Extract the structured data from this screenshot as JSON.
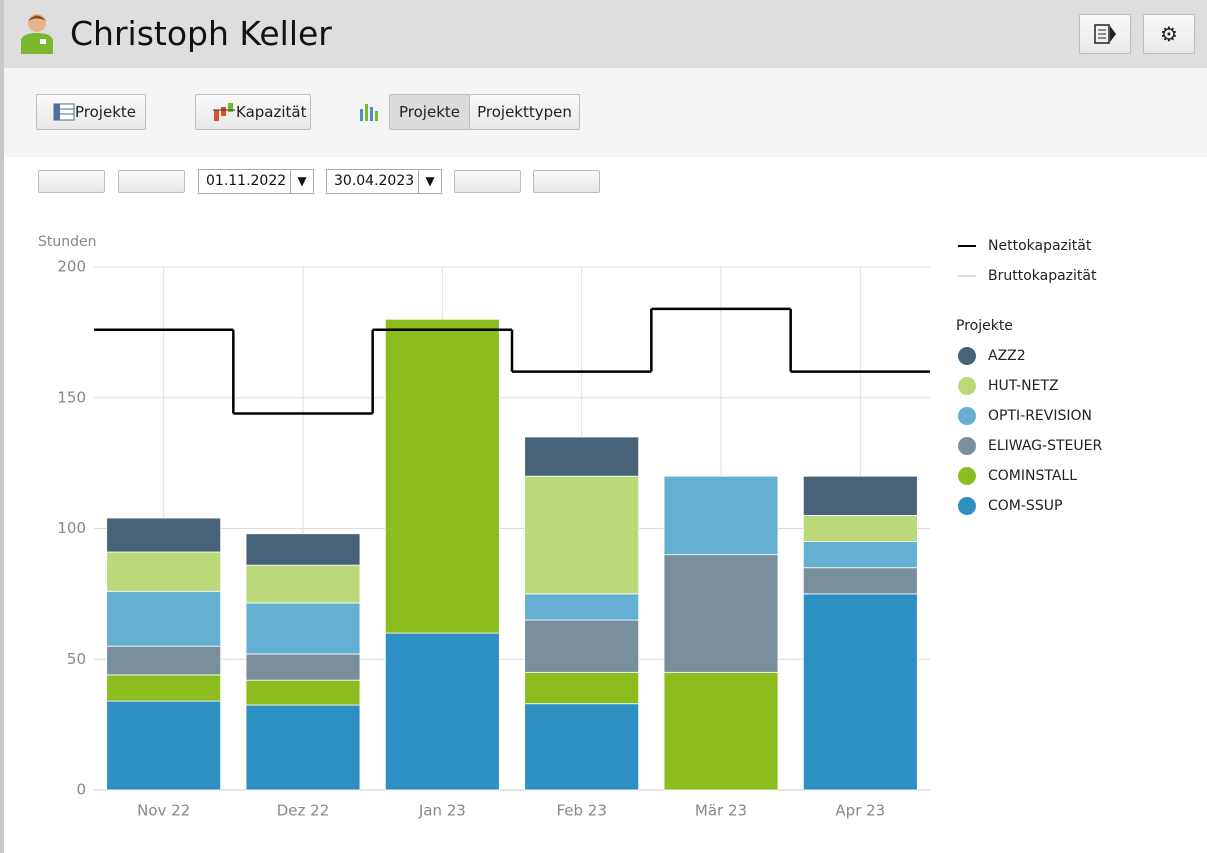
{
  "header": {
    "title": "Christoph Keller"
  },
  "toolbar": {
    "buttons": [
      "Projekte",
      "Kapazität"
    ],
    "toggle": [
      "Projekte",
      "Projekttypen"
    ]
  },
  "date_range": {
    "from": "01.11.2022",
    "to": "30.04.2023"
  },
  "chart_data": {
    "type": "bar",
    "stacked": true,
    "y_label": "Stunden",
    "categories": [
      "Nov 22",
      "Dez 22",
      "Jan 23",
      "Feb 23",
      "Mär 23",
      "Apr 23"
    ],
    "ylim": [
      0,
      200
    ],
    "yticks": [
      0,
      50,
      100,
      150,
      200
    ],
    "grid": true,
    "lines": [
      {
        "name": "Nettokapazität",
        "color": "#000000",
        "values": [
          176,
          144,
          176,
          160,
          184,
          160
        ]
      },
      {
        "name": "Bruttokapazität",
        "color": "#dddddd",
        "values": [
          null,
          null,
          null,
          null,
          null,
          null
        ]
      }
    ],
    "legend_title": "Projekte",
    "series": [
      {
        "name": "AZZ2",
        "color": "#46637a",
        "values": [
          13,
          12,
          0,
          15,
          0,
          15
        ]
      },
      {
        "name": "HUT-NETZ",
        "color": "#bcd97a",
        "values": [
          15,
          14.5,
          0,
          45,
          0,
          10
        ]
      },
      {
        "name": "OPTI-REVISION",
        "color": "#65afd3",
        "values": [
          21,
          19.5,
          0,
          10,
          30,
          10
        ]
      },
      {
        "name": "ELIWAG-STEUER",
        "color": "#7a8f9c",
        "values": [
          11,
          10,
          0,
          20,
          45,
          10
        ]
      },
      {
        "name": "COMINSTALL",
        "color": "#8cbd1f",
        "values": [
          10,
          9.5,
          120,
          12,
          45,
          0
        ]
      },
      {
        "name": "COM-SSUP",
        "color": "#2e8fc3",
        "values": [
          34,
          32.5,
          60,
          33,
          0,
          75
        ]
      }
    ]
  }
}
